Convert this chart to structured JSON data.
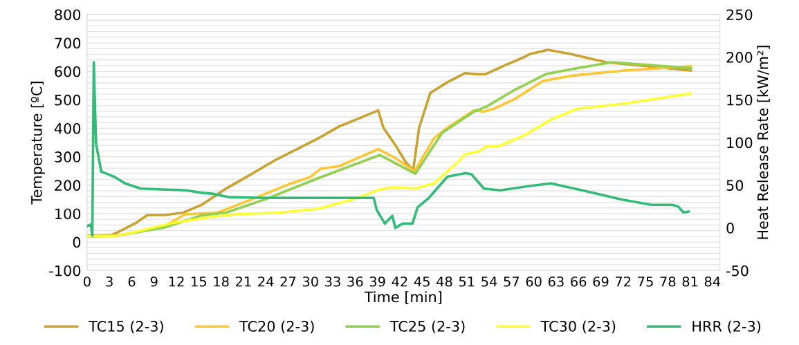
{
  "chart_data": {
    "type": "line",
    "xlabel": "Time [min]",
    "ylabel": "Temperature [ºC]",
    "y2label": "Heat Release Rate [kW/m²]",
    "xlim": [
      0,
      85
    ],
    "xticks": [
      0,
      3,
      6,
      9,
      12,
      15,
      18,
      21,
      24,
      27,
      30,
      33,
      36,
      39,
      42,
      45,
      48,
      51,
      54,
      57,
      60,
      63,
      66,
      69,
      72,
      75,
      78,
      81,
      84
    ],
    "ylim": [
      -100,
      800
    ],
    "yticks": [
      -100,
      {
        "value": -80,
        "label": null
      },
      {
        "value": -60,
        "label": null
      },
      {
        "value": -40,
        "label": null
      },
      {
        "value": -20,
        "label": null
      },
      0,
      {
        "value": 20,
        "label": null
      },
      {
        "value": 40,
        "label": null
      },
      {
        "value": 60,
        "label": null
      },
      {
        "value": 80,
        "label": null
      },
      100,
      {
        "value": 120,
        "label": null
      },
      {
        "value": 140,
        "label": null
      },
      {
        "value": 160,
        "label": null
      },
      {
        "value": 180,
        "label": null
      },
      200,
      {
        "value": 220,
        "label": null
      },
      {
        "value": 240,
        "label": null
      },
      {
        "value": 260,
        "label": null
      },
      {
        "value": 280,
        "label": null
      },
      300,
      {
        "value": 320,
        "label": null
      },
      {
        "value": 340,
        "label": null
      },
      {
        "value": 360,
        "label": null
      },
      {
        "value": 380,
        "label": null
      },
      400,
      {
        "value": 420,
        "label": null
      },
      {
        "value": 440,
        "label": null
      },
      {
        "value": 460,
        "label": null
      },
      {
        "value": 480,
        "label": null
      },
      500,
      {
        "value": 520,
        "label": null
      },
      {
        "value": 540,
        "label": null
      },
      {
        "value": 560,
        "label": null
      },
      {
        "value": 580,
        "label": null
      },
      600,
      {
        "value": 620,
        "label": null
      },
      {
        "value": 640,
        "label": null
      },
      {
        "value": 660,
        "label": null
      },
      {
        "value": 680,
        "label": null
      },
      700,
      {
        "value": 720,
        "label": null
      },
      {
        "value": 740,
        "label": null
      },
      {
        "value": 760,
        "label": null
      },
      {
        "value": 780,
        "label": null
      },
      800
    ],
    "y2lim": [
      -50,
      250
    ],
    "y2ticks": [
      -50,
      0,
      50,
      100,
      150,
      200,
      250
    ],
    "grid": "y",
    "legend": "bottom",
    "marker": "none",
    "line_style": "solid",
    "series": [
      {
        "name": "TC15 (2-3)",
        "color": "#c9a232",
        "x": [
          0,
          3.3,
          4,
          6.5,
          8.1,
          10.4,
          12.9,
          15.4,
          18.6,
          21.1,
          25.4,
          31.1,
          33.9,
          36.1,
          39.1,
          39.8,
          41.4,
          42.8,
          43.8,
          44.6,
          46.1,
          48.4,
          50.8,
          52.3,
          53.5,
          56.2,
          58.7,
          59.4,
          61.9,
          65.1,
          69.7,
          73.7,
          81.1
        ],
        "values": [
          22,
          25,
          33,
          66,
          95,
          95,
          103,
          131,
          187,
          224,
          290,
          365,
          407,
          430,
          463,
          402,
          341,
          281,
          253,
          402,
          524,
          562,
          594,
          590,
          590,
          622,
          650,
          660,
          676,
          660,
          632,
          622,
          603
        ]
      },
      {
        "name": "TC20 (2-3)",
        "color": "#ffc736",
        "x": [
          0,
          4,
          10.4,
          13.2,
          17.5,
          22.1,
          27.5,
          30,
          31.4,
          33.9,
          39.1,
          41.4,
          43.5,
          43.9,
          46.6,
          48.4,
          52,
          53.3,
          54.8,
          57.6,
          61.2,
          65.1,
          72.2,
          81.1
        ],
        "values": [
          20,
          22,
          56,
          98,
          103,
          150,
          207,
          229,
          258,
          267,
          327,
          295,
          258,
          245,
          365,
          402,
          463,
          459,
          470,
          505,
          566,
          585,
          603,
          618
        ]
      },
      {
        "name": "TC25 (2-3)",
        "color": "#92d050",
        "x": [
          0,
          4,
          10.4,
          15.4,
          18.6,
          23.9,
          31.1,
          39.3,
          43.9,
          44.1,
          47.7,
          52,
          53.7,
          57.3,
          61.6,
          65.1,
          70.5,
          75.8,
          81.1
        ],
        "values": [
          20,
          22,
          51,
          94,
          103,
          150,
          225,
          306,
          243,
          240,
          384,
          459,
          477,
          533,
          590,
          608,
          632,
          622,
          611
        ]
      },
      {
        "name": "TC30 (2-3)",
        "color": "#ffff33",
        "x": [
          0,
          4,
          6.1,
          11.5,
          16.8,
          20.4,
          25.7,
          31.1,
          35.7,
          39.6,
          41.4,
          44.1,
          46.6,
          49.8,
          50.8,
          52.6,
          53.7,
          55.1,
          58.7,
          62.3,
          65.8,
          72.2,
          81.1
        ],
        "values": [
          20,
          22,
          33,
          67,
          89,
          98,
          103,
          117,
          150,
          187,
          192,
          188,
          206,
          281,
          309,
          318,
          337,
          335,
          374,
          430,
          468,
          487,
          522
        ]
      },
      {
        "name": "HRR (2-3)",
        "color": "#33bb77",
        "axis": "y2",
        "x": [
          0,
          0.5,
          0.7,
          0.9,
          1.2,
          1.9,
          3.6,
          5.1,
          7.2,
          10.1,
          13.3,
          15.4,
          16.8,
          19,
          23.9,
          31.1,
          38.5,
          38.9,
          40,
          41,
          41.4,
          42.4,
          43.7,
          44.4,
          45.9,
          48.4,
          50.8,
          51.6,
          53.3,
          55.5,
          59.4,
          62.3,
          66.5,
          71.9,
          75.8,
          78.6,
          79.4,
          80.1,
          80.8
        ],
        "values": [
          2,
          4,
          -9,
          194,
          99,
          66,
          60,
          52,
          46,
          45,
          44,
          41,
          40,
          36,
          35,
          35,
          35,
          21,
          5,
          14,
          0,
          5,
          5,
          24,
          35,
          60,
          64,
          63,
          46,
          44,
          49,
          52,
          44,
          33,
          27,
          27,
          25,
          18,
          19
        ]
      }
    ]
  }
}
